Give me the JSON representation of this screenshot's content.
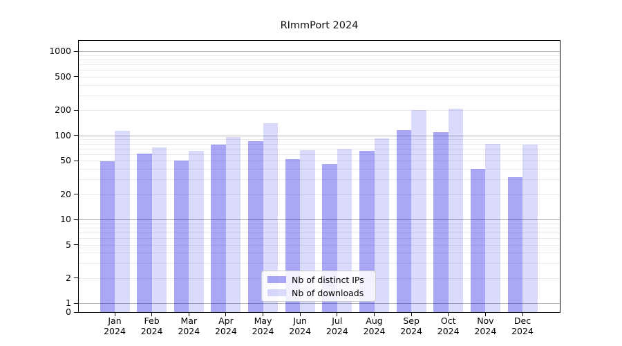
{
  "chart_data": {
    "type": "bar",
    "title": "RImmPort 2024",
    "categories": [
      "Jan",
      "Feb",
      "Mar",
      "Apr",
      "May",
      "Jun",
      "Jul",
      "Aug",
      "Sep",
      "Oct",
      "Nov",
      "Dec"
    ],
    "category_year": "2024",
    "series": [
      {
        "name": "Nb of distinct IPs",
        "key": "distinct-ips",
        "color": "#0000E657",
        "values": [
          49,
          61,
          50,
          78,
          85,
          52,
          46,
          65,
          115,
          110,
          40,
          32
        ]
      },
      {
        "name": "Nb of downloads",
        "key": "downloads",
        "color": "#0000E625",
        "values": [
          114,
          72,
          65,
          96,
          140,
          67,
          70,
          93,
          200,
          210,
          80,
          78
        ]
      }
    ],
    "yscale": "log",
    "y_tick_labels": [
      "1000",
      "500",
      "200",
      "100",
      "50",
      "20",
      "10",
      "5",
      "2",
      "1",
      "0"
    ],
    "y_tick_values": [
      1000,
      500,
      200,
      100,
      50,
      20,
      10,
      5,
      2,
      1,
      0
    ],
    "ylim": [
      0,
      1300
    ],
    "grid": true,
    "legend_position": "lower center"
  },
  "colors": {
    "major_grid": "#b0b0b0",
    "minor_grid": "#e9e9e9",
    "spine": "#000000",
    "background": "#ffffff"
  }
}
